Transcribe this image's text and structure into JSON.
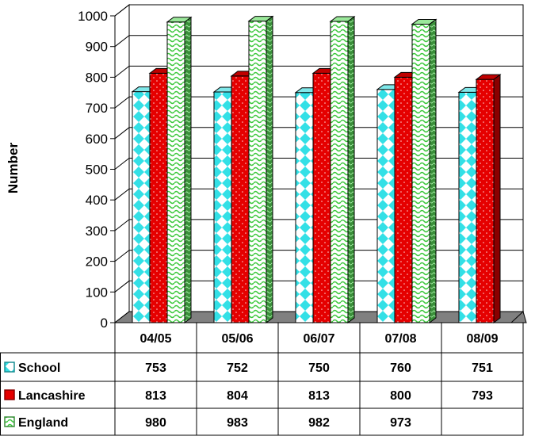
{
  "chart_data": {
    "type": "bar",
    "ylabel": "Number",
    "xlabel": "",
    "ylim": [
      0,
      1000
    ],
    "yticks": [
      "0",
      "100",
      "200",
      "300",
      "400",
      "500",
      "600",
      "700",
      "800",
      "900",
      "1000"
    ],
    "categories": [
      "04/05",
      "05/06",
      "06/07",
      "07/08",
      "08/09"
    ],
    "grid": true,
    "legend": "data-table",
    "series": [
      {
        "name": "School",
        "color": "#33e0e6",
        "values": [
          753,
          752,
          750,
          760,
          751
        ],
        "labels": [
          "753",
          "752",
          "750",
          "760",
          "751"
        ]
      },
      {
        "name": "Lancashire",
        "color": "#e50000",
        "values": [
          813,
          804,
          813,
          800,
          793
        ],
        "labels": [
          "813",
          "804",
          "813",
          "800",
          "793"
        ]
      },
      {
        "name": "England",
        "color": "#7ddc7d",
        "values": [
          980,
          983,
          982,
          973,
          null
        ],
        "labels": [
          "980",
          "983",
          "982",
          "973",
          ""
        ]
      }
    ]
  }
}
